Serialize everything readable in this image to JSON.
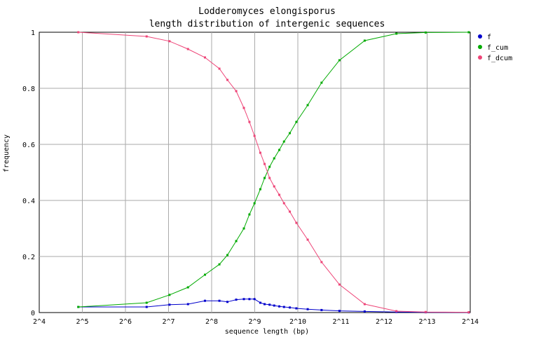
{
  "chart_data": {
    "type": "line",
    "title": "Lodderomyces elongisporus",
    "subtitle": "length distribution of intergenic sequences",
    "xlabel": "sequence length (bp)",
    "ylabel": "frequency",
    "x_scale": "log2",
    "xlim": [
      16,
      16384
    ],
    "ylim": [
      0,
      1
    ],
    "x_tick_labels": [
      "2^4",
      "2^5",
      "2^6",
      "2^7",
      "2^8",
      "2^9",
      "2^10",
      "2^11",
      "2^12",
      "2^13",
      "2^14"
    ],
    "y_tick_labels": [
      "0",
      "0.2",
      "0.4",
      "0.6",
      "0.8",
      "1"
    ],
    "grid": true,
    "legend_position": "top-right",
    "series": [
      {
        "name": "f",
        "color": "#0000cc",
        "x": [
          30,
          90,
          130,
          175,
          230,
          290,
          330,
          380,
          430,
          470,
          510,
          560,
          600,
          650,
          700,
          760,
          820,
          900,
          1000,
          1200,
          1500,
          2000,
          3000,
          5000,
          8000,
          16000
        ],
        "y": [
          0.02,
          0.02,
          0.028,
          0.03,
          0.042,
          0.042,
          0.038,
          0.046,
          0.048,
          0.048,
          0.048,
          0.035,
          0.03,
          0.028,
          0.025,
          0.022,
          0.02,
          0.018,
          0.015,
          0.012,
          0.009,
          0.006,
          0.004,
          0.002,
          0.001,
          0.0005
        ]
      },
      {
        "name": "f_cum",
        "color": "#00aa00",
        "x": [
          30,
          90,
          130,
          175,
          230,
          290,
          330,
          380,
          430,
          470,
          510,
          560,
          600,
          650,
          700,
          760,
          820,
          900,
          1000,
          1200,
          1500,
          2000,
          3000,
          5000,
          8000,
          16000
        ],
        "y": [
          0.02,
          0.035,
          0.063,
          0.09,
          0.135,
          0.172,
          0.205,
          0.255,
          0.3,
          0.35,
          0.39,
          0.44,
          0.48,
          0.52,
          0.55,
          0.58,
          0.61,
          0.64,
          0.68,
          0.74,
          0.82,
          0.9,
          0.97,
          0.995,
          0.999,
          1.0
        ]
      },
      {
        "name": "f_dcum",
        "color": "#ee4477",
        "x": [
          30,
          90,
          130,
          175,
          230,
          290,
          330,
          380,
          430,
          470,
          510,
          560,
          600,
          650,
          700,
          760,
          820,
          900,
          1000,
          1200,
          1500,
          2000,
          3000,
          5000,
          8000,
          16000
        ],
        "y": [
          1.0,
          0.985,
          0.968,
          0.94,
          0.91,
          0.87,
          0.83,
          0.79,
          0.73,
          0.68,
          0.63,
          0.57,
          0.53,
          0.48,
          0.45,
          0.42,
          0.39,
          0.36,
          0.32,
          0.26,
          0.18,
          0.1,
          0.03,
          0.005,
          0.002,
          0.001
        ]
      }
    ]
  }
}
